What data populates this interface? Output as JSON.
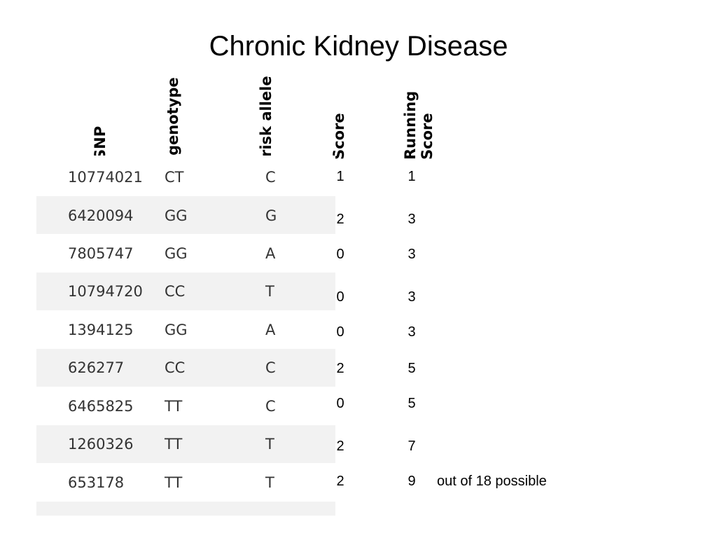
{
  "title": "Chronic Kidney Disease",
  "headers": {
    "snp": "SNP",
    "genotype": "genotype",
    "risk_allele": "risk allele",
    "score": "Score",
    "running_score": "Running\nScore"
  },
  "rows": [
    {
      "snp": "10774021",
      "genotype": "CT",
      "risk_allele": "C",
      "score": "1",
      "running": "1"
    },
    {
      "snp": "6420094",
      "genotype": "GG",
      "risk_allele": "G",
      "score": "2",
      "running": "3"
    },
    {
      "snp": "7805747",
      "genotype": "GG",
      "risk_allele": "A",
      "score": "0",
      "running": "3"
    },
    {
      "snp": "10794720",
      "genotype": "CC",
      "risk_allele": "T",
      "score": "0",
      "running": "3"
    },
    {
      "snp": "1394125",
      "genotype": "GG",
      "risk_allele": "A",
      "score": "0",
      "running": "3"
    },
    {
      "snp": "626277",
      "genotype": "CC",
      "risk_allele": "C",
      "score": "2",
      "running": "5"
    },
    {
      "snp": "6465825",
      "genotype": "TT",
      "risk_allele": "C",
      "score": "0",
      "running": "5"
    },
    {
      "snp": "1260326",
      "genotype": "TT",
      "risk_allele": "T",
      "score": "2",
      "running": "7"
    },
    {
      "snp": "653178",
      "genotype": "TT",
      "risk_allele": "T",
      "score": "2",
      "running": "9"
    }
  ],
  "total_note": "out of 18 possible"
}
